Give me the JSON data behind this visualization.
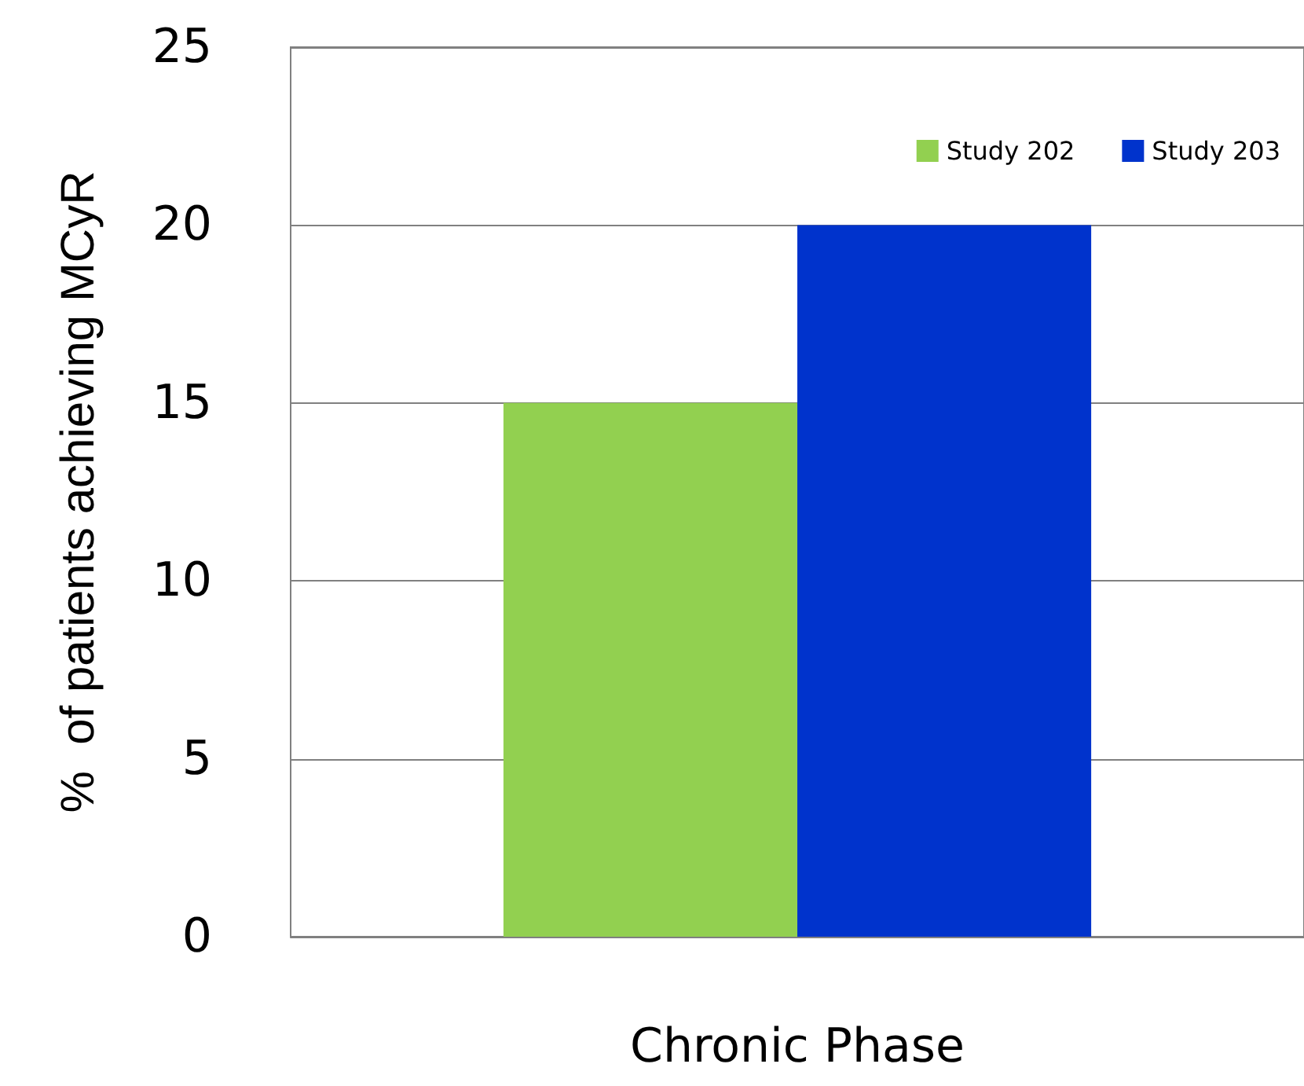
{
  "chart_data": {
    "type": "bar",
    "categories": [
      "Chronic Phase"
    ],
    "ylabel": "%  of patients achieving MCyR",
    "series": [
      {
        "name": "Study 202",
        "color": "#92d050",
        "values": [
          15
        ]
      },
      {
        "name": "Study 203",
        "color": "#0033cc",
        "values": [
          20
        ]
      }
    ],
    "ylim": [
      0,
      25
    ],
    "yticks": [
      0,
      5,
      10,
      15,
      20,
      25
    ],
    "grid": "y",
    "legend": "top right"
  }
}
